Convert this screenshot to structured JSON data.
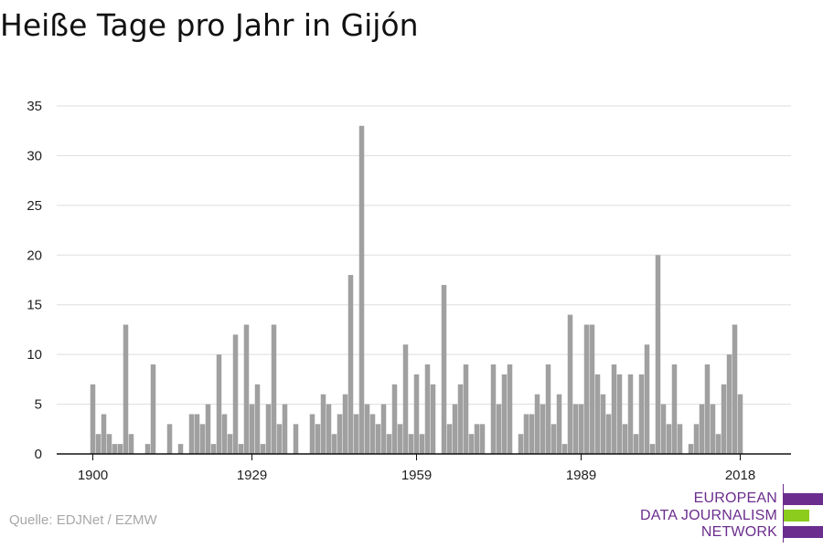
{
  "title": "Heiße Tage pro Jahr in Gijón",
  "source": "Quelle: EDJNet / EZMW",
  "logo": {
    "lines": [
      "EUROPEAN",
      "DATA JOURNALISM",
      "NETWORK"
    ],
    "colors": {
      "text": "#6b2d8e",
      "purple": "#6b2d8e",
      "green": "#8ccc1c"
    }
  },
  "colors": {
    "bar": "#a0a0a0",
    "grid": "#dddddd",
    "axis": "#111111",
    "text": "#222222"
  },
  "chart_data": {
    "type": "bar",
    "title": "Heiße Tage pro Jahr in Gijón",
    "xlabel": "",
    "ylabel": "",
    "ylim": [
      0,
      35
    ],
    "yticks": [
      0,
      5,
      10,
      15,
      20,
      25,
      30,
      35
    ],
    "xticks": [
      1900,
      1929,
      1959,
      1989,
      2018
    ],
    "grid": true,
    "x": [
      1900,
      1901,
      1902,
      1903,
      1904,
      1905,
      1906,
      1907,
      1908,
      1909,
      1910,
      1911,
      1912,
      1913,
      1914,
      1915,
      1916,
      1917,
      1918,
      1919,
      1920,
      1921,
      1922,
      1923,
      1924,
      1925,
      1926,
      1927,
      1928,
      1929,
      1930,
      1931,
      1932,
      1933,
      1934,
      1935,
      1936,
      1937,
      1938,
      1939,
      1940,
      1941,
      1942,
      1943,
      1944,
      1945,
      1946,
      1947,
      1948,
      1949,
      1950,
      1951,
      1952,
      1953,
      1954,
      1955,
      1956,
      1957,
      1958,
      1959,
      1960,
      1961,
      1962,
      1963,
      1964,
      1965,
      1966,
      1967,
      1968,
      1969,
      1970,
      1971,
      1972,
      1973,
      1974,
      1975,
      1976,
      1977,
      1978,
      1979,
      1980,
      1981,
      1982,
      1983,
      1984,
      1985,
      1986,
      1987,
      1988,
      1989,
      1990,
      1991,
      1992,
      1993,
      1994,
      1995,
      1996,
      1997,
      1998,
      1999,
      2000,
      2001,
      2002,
      2003,
      2004,
      2005,
      2006,
      2007,
      2008,
      2009,
      2010,
      2011,
      2012,
      2013,
      2014,
      2015,
      2016,
      2017,
      2018,
      2019
    ],
    "values": [
      7,
      2,
      4,
      2,
      1,
      1,
      13,
      2,
      0,
      0,
      1,
      9,
      0,
      0,
      3,
      0,
      1,
      0,
      4,
      4,
      3,
      5,
      1,
      10,
      4,
      2,
      12,
      1,
      13,
      5,
      7,
      1,
      5,
      13,
      3,
      5,
      0,
      3,
      0,
      0,
      4,
      3,
      6,
      5,
      2,
      4,
      6,
      18,
      4,
      33,
      5,
      4,
      3,
      5,
      2,
      7,
      3,
      11,
      2,
      8,
      2,
      9,
      7,
      0,
      17,
      3,
      5,
      7,
      9,
      2,
      3,
      3,
      0,
      9,
      5,
      8,
      9,
      0,
      2,
      4,
      4,
      6,
      5,
      9,
      3,
      6,
      1,
      14,
      5,
      5,
      13,
      13,
      8,
      6,
      4,
      9,
      8,
      3,
      8,
      2,
      8,
      11,
      1,
      20,
      5,
      3,
      9,
      3,
      0,
      1,
      3,
      5,
      9,
      5,
      2,
      7,
      10,
      13,
      6,
      0
    ]
  }
}
